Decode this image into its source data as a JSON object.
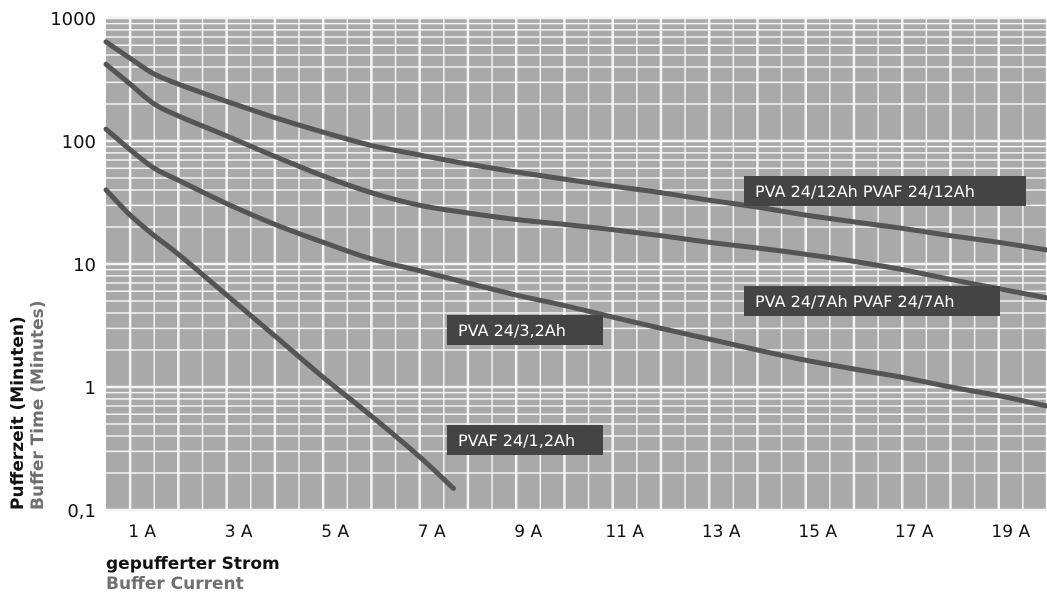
{
  "chart_data": {
    "type": "line",
    "y_scale": "log",
    "ylim": [
      0.1,
      1000
    ],
    "xlim": [
      0.5,
      20
    ],
    "x_ticks": [
      {
        "value": 1,
        "label": "1 A"
      },
      {
        "value": 3,
        "label": "3 A"
      },
      {
        "value": 5,
        "label": "5 A"
      },
      {
        "value": 7,
        "label": "7 A"
      },
      {
        "value": 9,
        "label": "9 A"
      },
      {
        "value": 11,
        "label": "11 A"
      },
      {
        "value": 13,
        "label": "13 A"
      },
      {
        "value": 15,
        "label": "15 A"
      },
      {
        "value": 17,
        "label": "17 A"
      },
      {
        "value": 19,
        "label": "19 A"
      }
    ],
    "y_ticks": [
      {
        "value": 1000,
        "label": "1000"
      },
      {
        "value": 100,
        "label": "100"
      },
      {
        "value": 10,
        "label": "10"
      },
      {
        "value": 1,
        "label": "1"
      },
      {
        "value": 0.1,
        "label": "0,1"
      }
    ],
    "ylabel_de": "Pufferzeit (Minuten)",
    "ylabel_en": "Buffer Time (Minutes)",
    "xlabel_de": "gepufferter Strom",
    "xlabel_en": "Buffer Current",
    "grid": true,
    "colors": {
      "plot_bg": "#a9a9a9",
      "grid": "#f4f4f4",
      "curve": "#555555",
      "label_bg": "#444444",
      "label_text": "#ffffff"
    },
    "series": [
      {
        "name": "PVA 24/12Ah PVAF 24/12Ah",
        "x": [
          0.5,
          1,
          1.5,
          2,
          3,
          4,
          5,
          6,
          7,
          8,
          9,
          10,
          11,
          12,
          13,
          14,
          15,
          16,
          17,
          18,
          19,
          20
        ],
        "y": [
          640,
          470,
          350,
          290,
          210,
          155,
          118,
          92,
          77,
          65,
          56,
          49,
          43,
          38,
          33,
          29,
          25,
          22,
          19.5,
          17,
          15,
          13
        ]
      },
      {
        "name": "PVA 24/7Ah PVAF 24/7Ah",
        "x": [
          0.5,
          1,
          1.5,
          2,
          3,
          4,
          5,
          6,
          7,
          8,
          9,
          10,
          11,
          12,
          13,
          14,
          15,
          16,
          17,
          18,
          19,
          20
        ],
        "y": [
          420,
          290,
          200,
          160,
          110,
          75,
          52,
          38,
          30,
          26,
          23,
          21,
          19,
          17,
          15,
          13.5,
          12,
          10.5,
          9,
          7.5,
          6.3,
          5.3
        ]
      },
      {
        "name": "PVA 24/3,2Ah",
        "x": [
          0.5,
          1,
          1.5,
          2,
          3,
          4,
          5,
          6,
          7,
          8,
          9,
          10,
          11,
          12,
          13,
          14,
          15,
          16,
          17,
          18,
          19,
          20
        ],
        "y": [
          125,
          85,
          60,
          48,
          31,
          21,
          15,
          11,
          8.8,
          7,
          5.6,
          4.6,
          3.7,
          3.0,
          2.45,
          2.0,
          1.65,
          1.4,
          1.2,
          1.0,
          0.85,
          0.7
        ]
      },
      {
        "name": "PVAF 24/1,2Ah",
        "x": [
          0.5,
          1,
          1.5,
          2,
          3,
          4,
          5,
          6,
          7,
          7.7
        ],
        "y": [
          40,
          25,
          17,
          12,
          5.6,
          2.6,
          1.2,
          0.58,
          0.27,
          0.15
        ]
      }
    ]
  }
}
